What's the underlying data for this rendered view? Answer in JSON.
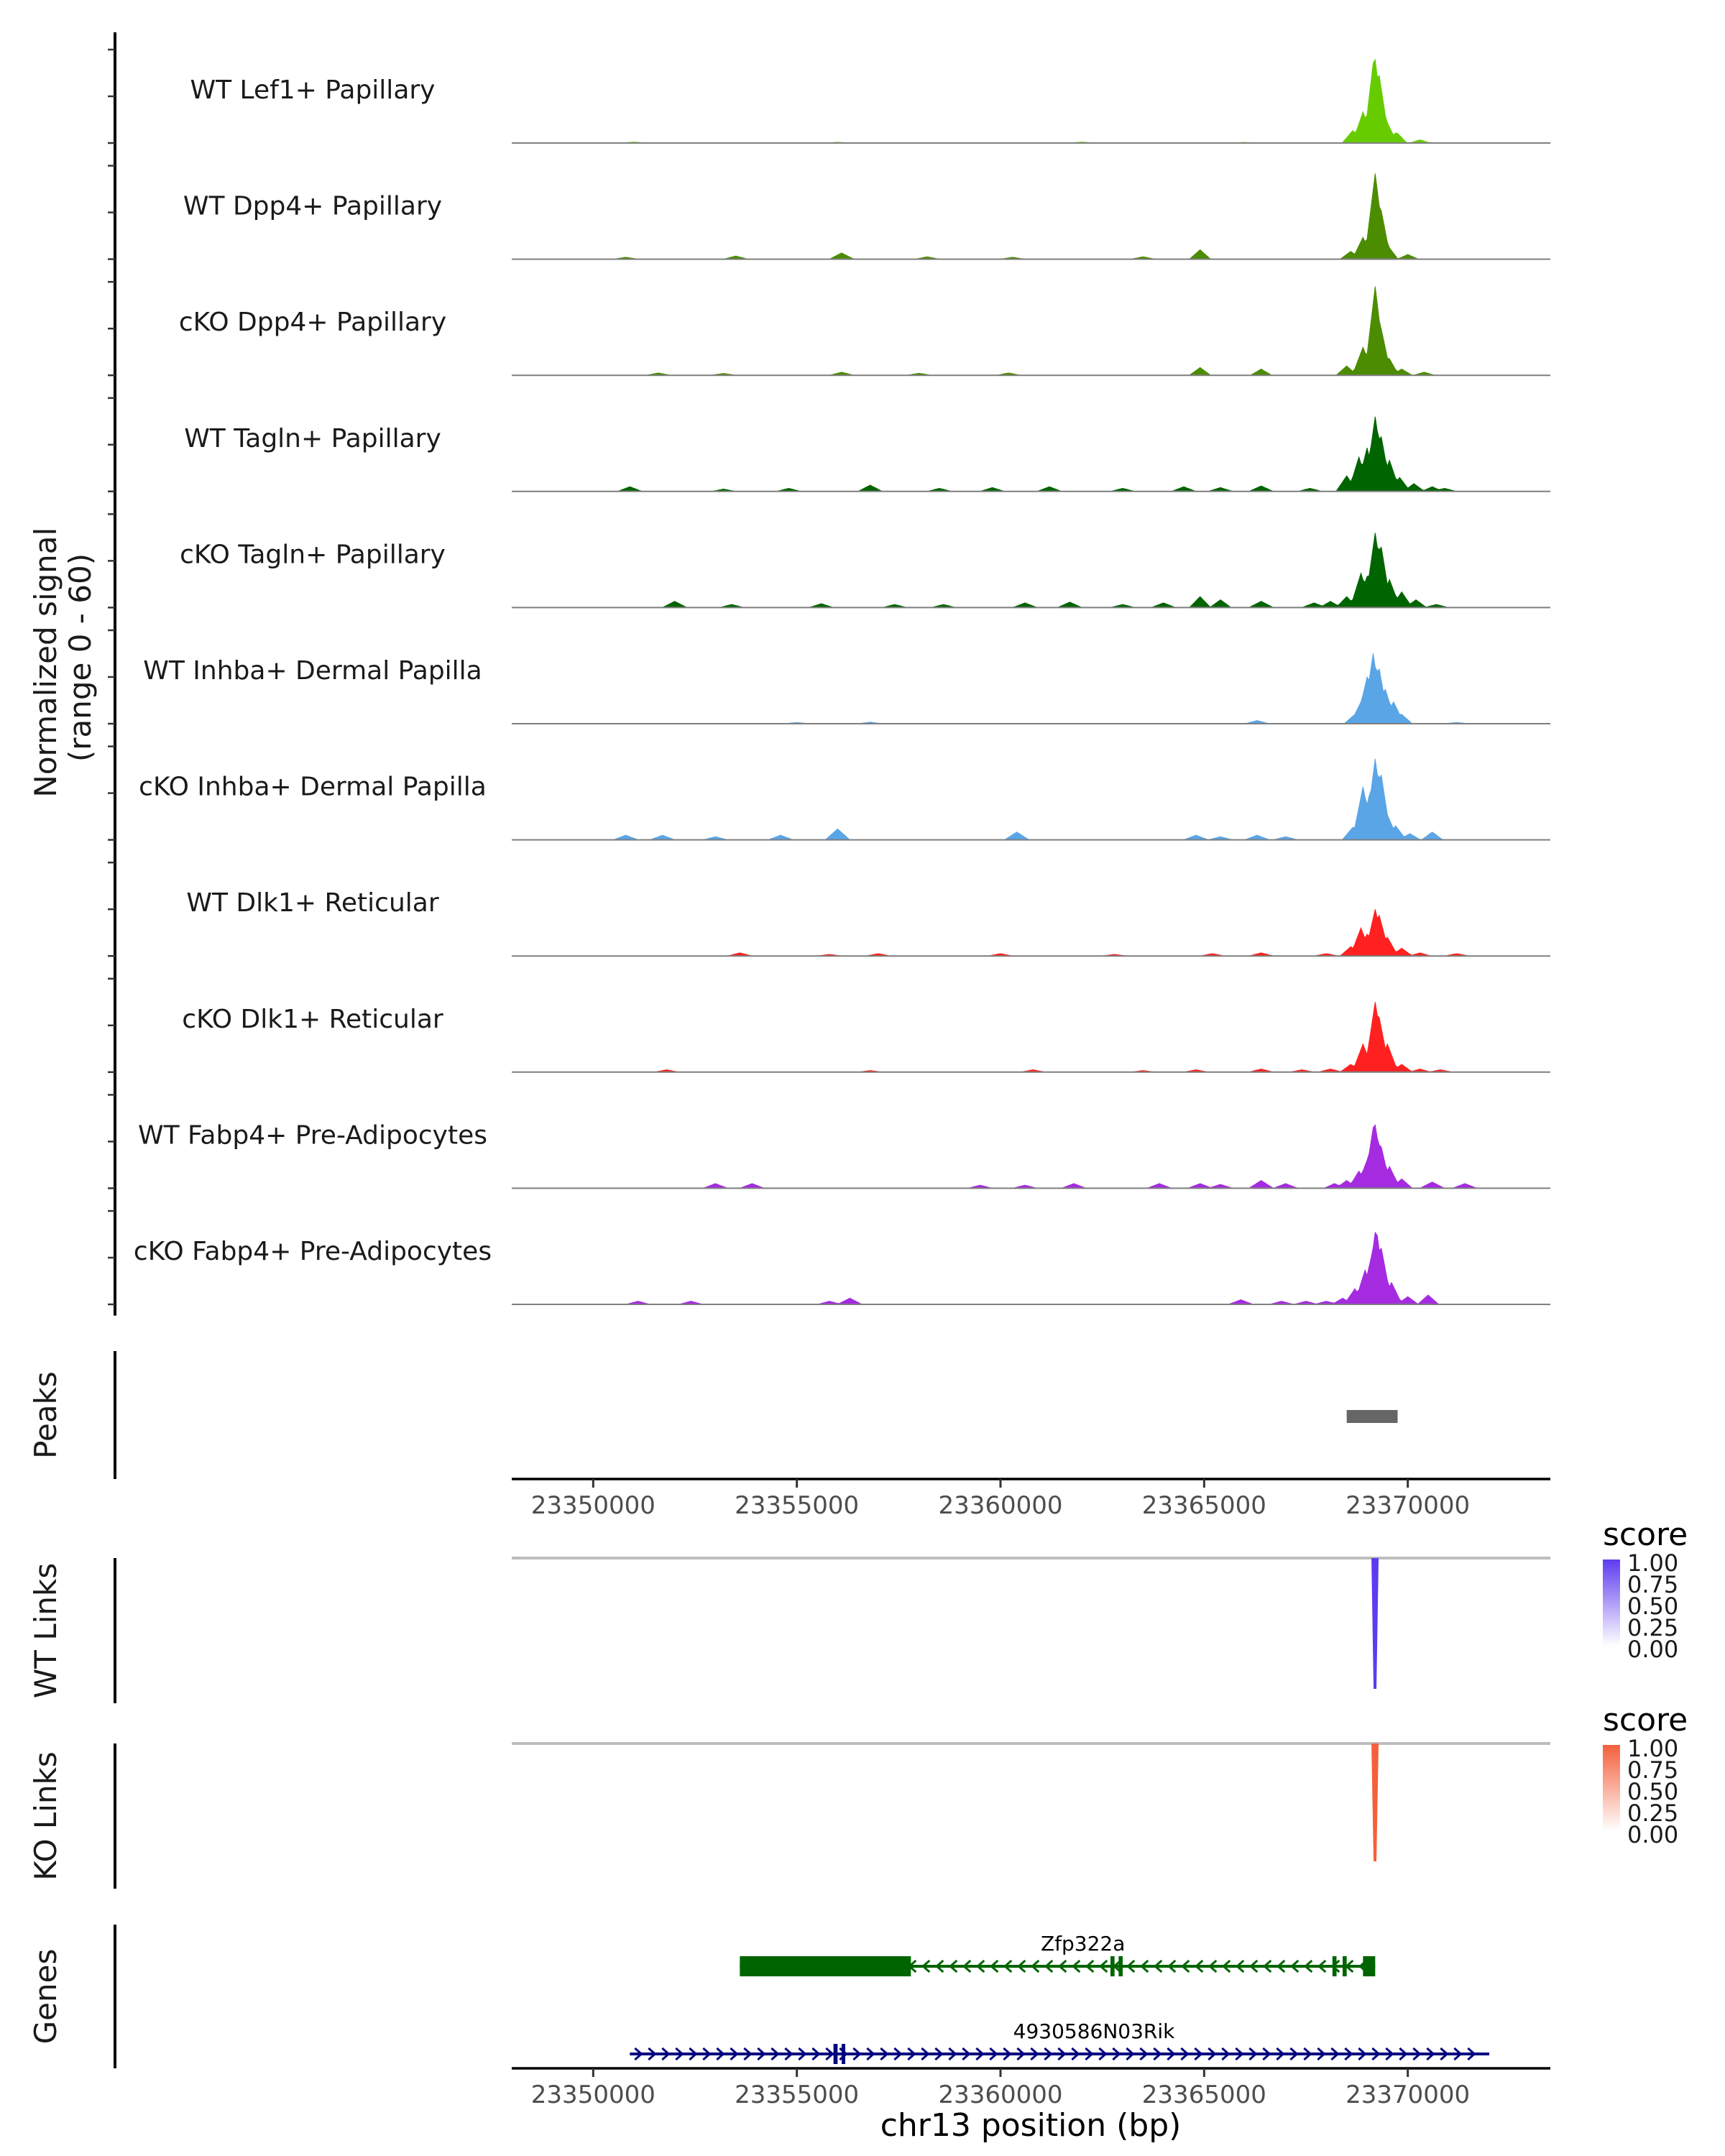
{
  "chart_data": {
    "type": "area",
    "title": "",
    "xlabel": "chr13 position (bp)",
    "xlim": [
      23348000,
      23373500
    ],
    "x_ticks": [
      "23350000",
      "23355000",
      "23360000",
      "23365000",
      "23370000"
    ],
    "coverage": {
      "ylabel_line1": "Normalized signal",
      "ylabel_line2": "(range 0 - 60)",
      "ylim": [
        0,
        60
      ],
      "tracks": [
        {
          "name": "WT Lef1+ Papillary",
          "color": "#66CC00",
          "baseline": [
            [
              23351000,
              0.6
            ],
            [
              23356000,
              0.5
            ],
            [
              23362000,
              0.6
            ],
            [
              23366000,
              0.4
            ]
          ],
          "peaks": [
            [
              23368650,
              8
            ],
            [
              23368900,
              20
            ],
            [
              23369050,
              16
            ],
            [
              23369180,
              58
            ],
            [
              23369290,
              45
            ],
            [
              23369480,
              14
            ],
            [
              23369720,
              7
            ],
            [
              23370300,
              2
            ]
          ]
        },
        {
          "name": "WT Dpp4+ Papillary",
          "color": "#4C8C00",
          "baseline": [
            [
              23350800,
              1.2
            ],
            [
              23353500,
              2
            ],
            [
              23356100,
              4
            ],
            [
              23358200,
              1.5
            ],
            [
              23360300,
              1.2
            ],
            [
              23363500,
              1.5
            ]
          ],
          "peaks": [
            [
              23364900,
              6
            ],
            [
              23368600,
              5
            ],
            [
              23368900,
              14
            ],
            [
              23369050,
              10
            ],
            [
              23369200,
              55
            ],
            [
              23369320,
              35
            ],
            [
              23369500,
              9
            ],
            [
              23370000,
              3
            ]
          ]
        },
        {
          "name": "cKO Dpp4+ Papillary",
          "color": "#4C8C00",
          "baseline": [
            [
              23351600,
              1.5
            ],
            [
              23353200,
              1.2
            ],
            [
              23356100,
              2
            ],
            [
              23358000,
              1.3
            ],
            [
              23360200,
              1.5
            ]
          ],
          "peaks": [
            [
              23364900,
              5
            ],
            [
              23366400,
              4
            ],
            [
              23368500,
              6
            ],
            [
              23368900,
              18
            ],
            [
              23369050,
              14
            ],
            [
              23369200,
              57
            ],
            [
              23369330,
              32
            ],
            [
              23369520,
              12
            ],
            [
              23369850,
              4
            ],
            [
              23370400,
              2
            ]
          ]
        },
        {
          "name": "WT Tagln+ Papillary",
          "color": "#006400",
          "baseline": [
            [
              23350900,
              3
            ],
            [
              23353200,
              1.5
            ],
            [
              23354800,
              2
            ],
            [
              23356800,
              4
            ],
            [
              23358500,
              2
            ],
            [
              23359800,
              2.5
            ],
            [
              23361200,
              3
            ],
            [
              23363000,
              2
            ],
            [
              23364500,
              3
            ],
            [
              23365400,
              2.5
            ],
            [
              23366400,
              3.5
            ],
            [
              23367600,
              2
            ],
            [
              23370900,
              2
            ]
          ],
          "peaks": [
            [
              23368500,
              10
            ],
            [
              23368800,
              22
            ],
            [
              23369000,
              28
            ],
            [
              23369200,
              48
            ],
            [
              23369330,
              38
            ],
            [
              23369550,
              20
            ],
            [
              23369800,
              9
            ],
            [
              23370150,
              5
            ],
            [
              23370600,
              3
            ]
          ]
        },
        {
          "name": "cKO Tagln+ Papillary",
          "color": "#006400",
          "baseline": [
            [
              23352000,
              4
            ],
            [
              23353400,
              2
            ],
            [
              23355600,
              2.5
            ],
            [
              23357400,
              2
            ],
            [
              23358600,
              2
            ],
            [
              23360600,
              3
            ],
            [
              23361700,
              3.5
            ],
            [
              23363000,
              2
            ],
            [
              23364000,
              3
            ],
            [
              23366400,
              4
            ],
            [
              23367700,
              3
            ],
            [
              23370700,
              2
            ]
          ],
          "peaks": [
            [
              23364900,
              7
            ],
            [
              23365400,
              5
            ],
            [
              23368100,
              4
            ],
            [
              23368500,
              7
            ],
            [
              23368850,
              22
            ],
            [
              23369000,
              20
            ],
            [
              23369200,
              48
            ],
            [
              23369330,
              42
            ],
            [
              23369550,
              18
            ],
            [
              23369850,
              10
            ],
            [
              23370200,
              5
            ]
          ]
        },
        {
          "name": "WT Inhba+ Dermal Papilla",
          "color": "#5AA5E6",
          "baseline": [
            [
              23355000,
              0.8
            ],
            [
              23356800,
              1
            ],
            [
              23366300,
              2
            ],
            [
              23371200,
              0.8
            ]
          ],
          "peaks": [
            [
              23368700,
              6
            ],
            [
              23368850,
              14
            ],
            [
              23369000,
              30
            ],
            [
              23369150,
              45
            ],
            [
              23369280,
              38
            ],
            [
              23369450,
              22
            ],
            [
              23369650,
              14
            ],
            [
              23369850,
              6
            ]
          ]
        },
        {
          "name": "cKO Inhba+ Dermal Papilla",
          "color": "#5AA5E6",
          "baseline": [
            [
              23350800,
              3
            ],
            [
              23351700,
              3
            ],
            [
              23353000,
              2
            ],
            [
              23354600,
              3
            ],
            [
              23356000,
              7
            ],
            [
              23360400,
              5
            ],
            [
              23364800,
              3
            ],
            [
              23365400,
              2
            ],
            [
              23366300,
              3
            ],
            [
              23367000,
              2
            ]
          ],
          "peaks": [
            [
              23368650,
              8
            ],
            [
              23368900,
              34
            ],
            [
              23369050,
              28
            ],
            [
              23369200,
              52
            ],
            [
              23369330,
              45
            ],
            [
              23369500,
              16
            ],
            [
              23369700,
              9
            ],
            [
              23370050,
              4
            ],
            [
              23370600,
              5
            ]
          ]
        },
        {
          "name": "WT Dlk1+ Reticular",
          "color": "#FF2020",
          "baseline": [
            [
              23353600,
              2
            ],
            [
              23355800,
              1
            ],
            [
              23357000,
              1.5
            ],
            [
              23360000,
              1.5
            ],
            [
              23362800,
              1
            ],
            [
              23365200,
              1.5
            ],
            [
              23366400,
              2
            ],
            [
              23368000,
              1.5
            ],
            [
              23371200,
              1.5
            ]
          ],
          "peaks": [
            [
              23368600,
              6
            ],
            [
              23368850,
              18
            ],
            [
              23369000,
              14
            ],
            [
              23369200,
              30
            ],
            [
              23369300,
              26
            ],
            [
              23369500,
              12
            ],
            [
              23369850,
              5
            ],
            [
              23370300,
              2
            ]
          ]
        },
        {
          "name": "cKO Dlk1+ Reticular",
          "color": "#FF2020",
          "baseline": [
            [
              23351800,
              1.5
            ],
            [
              23356800,
              1
            ],
            [
              23360800,
              1.5
            ],
            [
              23363500,
              1
            ],
            [
              23364800,
              1.5
            ],
            [
              23366400,
              2
            ],
            [
              23367400,
              1.5
            ],
            [
              23368100,
              2
            ],
            [
              23370800,
              1.5
            ]
          ],
          "peaks": [
            [
              23368600,
              5
            ],
            [
              23368900,
              18
            ],
            [
              23369050,
              14
            ],
            [
              23369200,
              45
            ],
            [
              23369300,
              35
            ],
            [
              23369500,
              18
            ],
            [
              23369850,
              5
            ],
            [
              23370300,
              2
            ]
          ]
        },
        {
          "name": "WT Fabp4+ Pre-Adipocytes",
          "color": "#A52BE0",
          "baseline": [
            [
              23353000,
              3
            ],
            [
              23353900,
              3
            ],
            [
              23359500,
              2
            ],
            [
              23360600,
              2
            ],
            [
              23361800,
              3
            ],
            [
              23363900,
              3
            ],
            [
              23364900,
              3
            ],
            [
              23365400,
              2.5
            ],
            [
              23366400,
              5
            ],
            [
              23367000,
              3
            ],
            [
              23370600,
              4
            ],
            [
              23371400,
              3
            ]
          ],
          "peaks": [
            [
              23368200,
              3
            ],
            [
              23368500,
              5
            ],
            [
              23368800,
              11
            ],
            [
              23369000,
              18
            ],
            [
              23369180,
              44
            ],
            [
              23369320,
              30
            ],
            [
              23369550,
              14
            ],
            [
              23369850,
              6
            ]
          ]
        },
        {
          "name": "cKO Fabp4+ Pre-Adipocytes",
          "color": "#A52BE0",
          "baseline": [
            [
              23351100,
              2
            ],
            [
              23352400,
              2
            ],
            [
              23355800,
              2
            ],
            [
              23356300,
              4
            ],
            [
              23365900,
              3
            ],
            [
              23366900,
              2
            ],
            [
              23367500,
              2
            ],
            [
              23368000,
              2
            ]
          ],
          "peaks": [
            [
              23368400,
              4
            ],
            [
              23368700,
              10
            ],
            [
              23368950,
              22
            ],
            [
              23369100,
              30
            ],
            [
              23369220,
              50
            ],
            [
              23369350,
              36
            ],
            [
              23369600,
              14
            ],
            [
              23370000,
              5
            ],
            [
              23370500,
              6
            ]
          ]
        }
      ]
    },
    "peaks_track": {
      "label": "Peaks",
      "regions": [
        [
          23368500,
          23369750
        ]
      ],
      "color": "#666666"
    },
    "links": [
      {
        "label": "WT Links",
        "legend_title": "score",
        "color": "#5E3BF0",
        "legend_ticks": [
          "1.00",
          "0.75",
          "0.50",
          "0.25",
          "0.00"
        ],
        "score": 1.0,
        "start": 23369180,
        "end": 23369210
      },
      {
        "label": "KO Links",
        "legend_title": "score",
        "color": "#F4603C",
        "legend_ticks": [
          "1.00",
          "0.75",
          "0.50",
          "0.25",
          "0.00"
        ],
        "score": 0.9,
        "start": 23369180,
        "end": 23369210
      }
    ],
    "genes_track": {
      "label": "Genes",
      "genes": [
        {
          "name": "Zfp322a",
          "start": 23353600,
          "end": 23369200,
          "strand": "-",
          "color": "#006400",
          "exons": [
            [
              23353600,
              23357800
            ],
            [
              23362700,
              23362800
            ],
            [
              23362900,
              23363000
            ],
            [
              23368150,
              23368250
            ],
            [
              23368400,
              23368500
            ],
            [
              23368900,
              23369200
            ]
          ]
        },
        {
          "name": "4930586N03Rik",
          "start": 23350900,
          "end": 23372000,
          "strand": "+",
          "color": "#000080",
          "exons": [
            [
              23355900,
              23356000
            ],
            [
              23356100,
              23356160
            ]
          ]
        }
      ]
    }
  }
}
